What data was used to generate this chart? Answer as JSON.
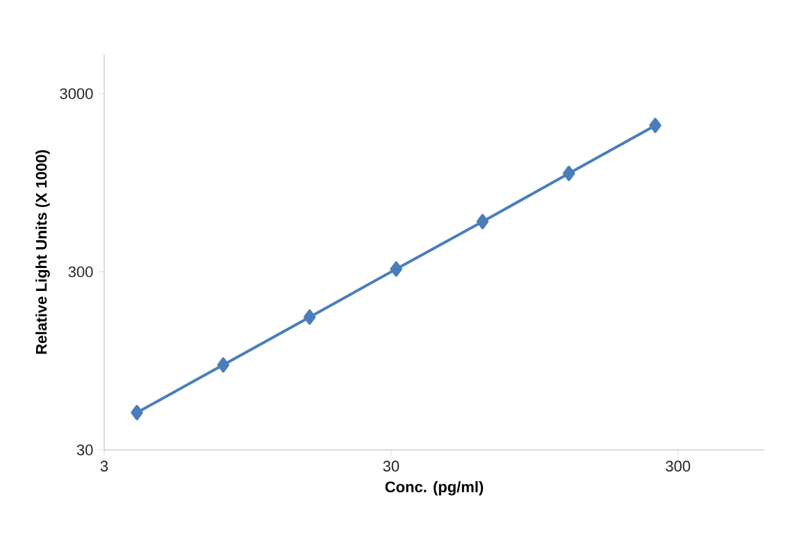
{
  "chart_data": {
    "type": "line",
    "xlabel": "Conc. (pg/ml)",
    "ylabel": "Relative Light Units (X 1000)",
    "x": [
      3.9,
      7.8,
      15.6,
      31.25,
      62.5,
      125,
      250
    ],
    "series": [
      {
        "color": "#4a7ebb",
        "values": [
          48.6,
          90,
          167,
          311,
          574,
          1070,
          1990
        ]
      }
    ],
    "log": "xy",
    "xlim": [
      3,
      600
    ],
    "ylim": [
      30,
      5000
    ],
    "xticks": [
      3,
      30,
      300
    ],
    "yticks": [
      30,
      300,
      3000
    ],
    "marker": "diamond",
    "line_style": "solid"
  }
}
